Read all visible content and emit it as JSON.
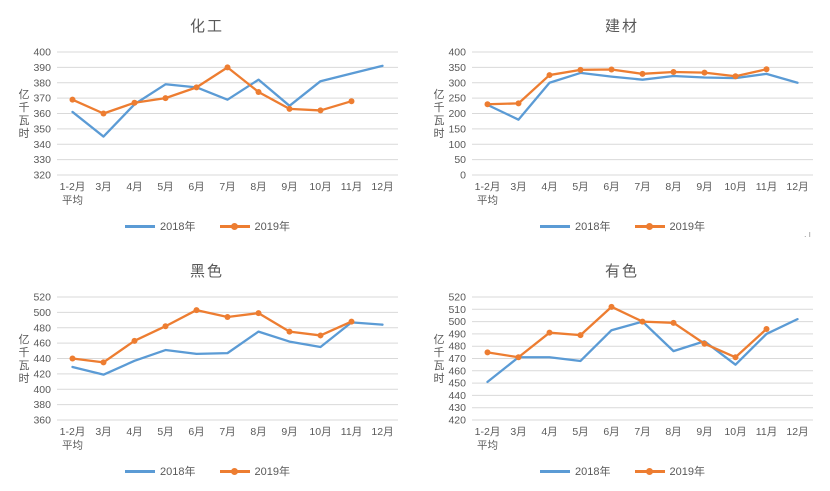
{
  "page": {
    "background": "#ffffff",
    "artifact_mark": ".ı"
  },
  "colors": {
    "series_2018": "#5B9BD5",
    "series_2019": "#ED7D31",
    "gridline": "#D9D9D9",
    "label": "#595959",
    "title": "#595959"
  },
  "legend": {
    "label_2018": "2018年",
    "label_2019": "2019年"
  },
  "axis": {
    "unit_label": "亿千瓦时",
    "categories": [
      "1-2月\n平均",
      "3月",
      "4月",
      "5月",
      "6月",
      "7月",
      "8月",
      "9月",
      "10月",
      "11月",
      "12月"
    ]
  },
  "chart_data": [
    {
      "type": "line",
      "title": "化工",
      "ylabel": "亿千瓦时",
      "ylim": [
        320,
        400
      ],
      "ytick_step": 10,
      "grid": "horizontal",
      "legend_position": "bottom",
      "categories": [
        "1-2月\n平均",
        "3月",
        "4月",
        "5月",
        "6月",
        "7月",
        "8月",
        "9月",
        "10月",
        "11月",
        "12月"
      ],
      "series": [
        {
          "name": "2018年",
          "color": "#5B9BD5",
          "marker": "none",
          "values": [
            361,
            345,
            366,
            379,
            377,
            369,
            382,
            365,
            381,
            386,
            391
          ]
        },
        {
          "name": "2019年",
          "color": "#ED7D31",
          "marker": "circle",
          "values": [
            369,
            360,
            367,
            370,
            377,
            390,
            374,
            363,
            362,
            368
          ]
        }
      ]
    },
    {
      "type": "line",
      "title": "建材",
      "ylabel": "亿千瓦时",
      "ylim": [
        0,
        400
      ],
      "ytick_step": 50,
      "grid": "horizontal",
      "legend_position": "bottom",
      "categories": [
        "1-2月\n平均",
        "3月",
        "4月",
        "5月",
        "6月",
        "7月",
        "8月",
        "9月",
        "10月",
        "11月",
        "12月"
      ],
      "series": [
        {
          "name": "2018年",
          "color": "#5B9BD5",
          "marker": "none",
          "values": [
            228,
            180,
            300,
            332,
            320,
            310,
            322,
            317,
            315,
            329,
            300
          ]
        },
        {
          "name": "2019年",
          "color": "#ED7D31",
          "marker": "circle",
          "values": [
            230,
            233,
            325,
            342,
            343,
            329,
            335,
            333,
            321,
            344
          ]
        }
      ]
    },
    {
      "type": "line",
      "title": "黑色",
      "ylabel": "亿千瓦时",
      "ylim": [
        360,
        520
      ],
      "ytick_step": 20,
      "grid": "horizontal",
      "legend_position": "bottom",
      "categories": [
        "1-2月\n平均",
        "3月",
        "4月",
        "5月",
        "6月",
        "7月",
        "8月",
        "9月",
        "10月",
        "11月",
        "12月"
      ],
      "series": [
        {
          "name": "2018年",
          "color": "#5B9BD5",
          "marker": "none",
          "values": [
            429,
            419,
            437,
            451,
            446,
            447,
            475,
            462,
            455,
            487,
            484
          ]
        },
        {
          "name": "2019年",
          "color": "#ED7D31",
          "marker": "circle",
          "values": [
            440,
            435,
            463,
            482,
            503,
            494,
            499,
            475,
            470,
            488
          ]
        }
      ]
    },
    {
      "type": "line",
      "title": "有色",
      "ylabel": "亿千瓦时",
      "ylim": [
        420,
        520
      ],
      "ytick_step": 10,
      "grid": "horizontal",
      "legend_position": "bottom",
      "categories": [
        "1-2月\n平均",
        "3月",
        "4月",
        "5月",
        "6月",
        "7月",
        "8月",
        "9月",
        "10月",
        "11月",
        "12月"
      ],
      "series": [
        {
          "name": "2018年",
          "color": "#5B9BD5",
          "marker": "none",
          "values": [
            451,
            471,
            471,
            468,
            493,
            500,
            476,
            484,
            465,
            490,
            502
          ]
        },
        {
          "name": "2019年",
          "color": "#ED7D31",
          "marker": "circle",
          "values": [
            475,
            471,
            491,
            489,
            512,
            500,
            499,
            482,
            471,
            494
          ]
        }
      ]
    }
  ]
}
